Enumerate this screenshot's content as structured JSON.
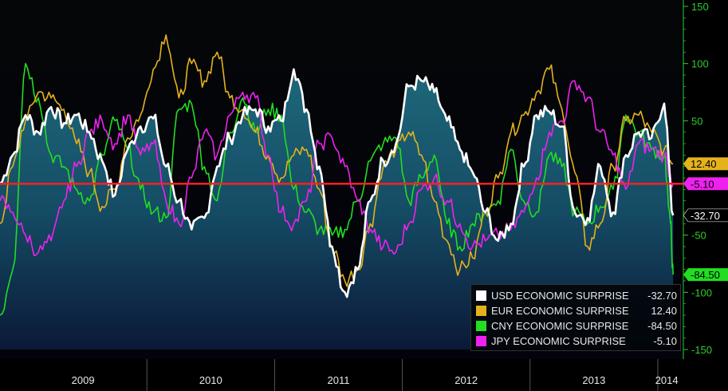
{
  "chart_data": {
    "type": "line",
    "title": "",
    "xlabel": "",
    "ylabel": "",
    "ylim": [
      -150,
      150
    ],
    "xlim": [
      2008.85,
      2014.2
    ],
    "y_ticks": [
      150,
      100,
      50,
      -50,
      -100,
      -150
    ],
    "x_tick_labels": [
      {
        "label": "2009",
        "at": 2009.5
      },
      {
        "label": "2010",
        "at": 2010.5
      },
      {
        "label": "2011",
        "at": 2011.5
      },
      {
        "label": "2012",
        "at": 2012.5
      },
      {
        "label": "2013",
        "at": 2013.5
      },
      {
        "label": "2014",
        "at": 2014.07
      }
    ],
    "year_dividers": [
      2010,
      2011,
      2012,
      2013,
      2014
    ],
    "reference_line": {
      "value": -5.1,
      "color": "#ff2222"
    },
    "series": [
      {
        "name": "USD ECONOMIC SURPRISE",
        "legend_value": "-32.70",
        "tag": "-32.70",
        "last": -32.7,
        "color": "#ffffff",
        "fill": true,
        "x": [
          2008.85,
          2008.95,
          2009.05,
          2009.15,
          2009.25,
          2009.35,
          2009.45,
          2009.55,
          2009.65,
          2009.75,
          2009.85,
          2009.95,
          2010.05,
          2010.15,
          2010.25,
          2010.35,
          2010.45,
          2010.55,
          2010.65,
          2010.75,
          2010.85,
          2010.95,
          2011.05,
          2011.15,
          2011.25,
          2011.35,
          2011.45,
          2011.55,
          2011.65,
          2011.75,
          2011.85,
          2011.95,
          2012.05,
          2012.15,
          2012.25,
          2012.35,
          2012.45,
          2012.55,
          2012.65,
          2012.75,
          2012.85,
          2012.95,
          2013.05,
          2013.15,
          2013.25,
          2013.35,
          2013.45,
          2013.55,
          2013.65,
          2013.75,
          2013.85,
          2013.95,
          2014.05,
          2014.12
        ],
        "values": [
          -5,
          20,
          55,
          40,
          62,
          48,
          55,
          40,
          15,
          -15,
          25,
          45,
          52,
          10,
          -20,
          -45,
          -35,
          10,
          35,
          55,
          60,
          45,
          50,
          95,
          60,
          10,
          -60,
          -100,
          -80,
          -20,
          15,
          30,
          80,
          85,
          75,
          50,
          25,
          5,
          -30,
          -55,
          -40,
          10,
          55,
          58,
          45,
          -30,
          -35,
          10,
          -30,
          20,
          40,
          35,
          65,
          -32.7
        ]
      },
      {
        "name": "EUR ECONOMIC SURPRISE",
        "legend_value": "12.40",
        "tag": "12.40",
        "last": 12.4,
        "color": "#e5b21c",
        "fill": false,
        "x": [
          2008.85,
          2008.95,
          2009.05,
          2009.15,
          2009.25,
          2009.35,
          2009.45,
          2009.55,
          2009.65,
          2009.75,
          2009.85,
          2009.95,
          2010.05,
          2010.15,
          2010.25,
          2010.35,
          2010.45,
          2010.55,
          2010.65,
          2010.75,
          2010.85,
          2010.95,
          2011.05,
          2011.15,
          2011.25,
          2011.35,
          2011.45,
          2011.55,
          2011.65,
          2011.75,
          2011.85,
          2011.95,
          2012.05,
          2012.15,
          2012.25,
          2012.35,
          2012.45,
          2012.55,
          2012.65,
          2012.75,
          2012.85,
          2012.95,
          2013.05,
          2013.15,
          2013.25,
          2013.35,
          2013.45,
          2013.55,
          2013.65,
          2013.75,
          2013.85,
          2013.95,
          2014.05,
          2014.12
        ],
        "values": [
          -40,
          10,
          50,
          75,
          70,
          60,
          30,
          5,
          -25,
          -10,
          35,
          55,
          95,
          125,
          70,
          100,
          85,
          110,
          70,
          60,
          40,
          20,
          0,
          20,
          25,
          -10,
          -60,
          -90,
          -80,
          -40,
          10,
          25,
          40,
          20,
          -20,
          -55,
          -80,
          -70,
          -30,
          0,
          40,
          55,
          75,
          95,
          60,
          5,
          -60,
          -40,
          10,
          50,
          55,
          40,
          25,
          12.4
        ]
      },
      {
        "name": "CNY ECONOMIC SURPRISE",
        "legend_value": "-84.50",
        "tag": "-84.50",
        "last": -84.5,
        "color": "#22dd22",
        "fill": false,
        "x": [
          2008.85,
          2008.95,
          2009.05,
          2009.15,
          2009.25,
          2009.35,
          2009.45,
          2009.55,
          2009.65,
          2009.75,
          2009.85,
          2009.95,
          2010.05,
          2010.15,
          2010.25,
          2010.35,
          2010.45,
          2010.55,
          2010.65,
          2010.75,
          2010.85,
          2010.95,
          2011.05,
          2011.15,
          2011.25,
          2011.35,
          2011.45,
          2011.55,
          2011.65,
          2011.75,
          2011.85,
          2011.95,
          2012.05,
          2012.15,
          2012.25,
          2012.35,
          2012.45,
          2012.55,
          2012.65,
          2012.75,
          2012.85,
          2012.95,
          2013.05,
          2013.15,
          2013.25,
          2013.35,
          2013.45,
          2013.55,
          2013.65,
          2013.75,
          2013.85,
          2013.95,
          2014.05,
          2014.1,
          2014.12
        ],
        "values": [
          -120,
          -80,
          100,
          70,
          20,
          10,
          -10,
          -20,
          20,
          50,
          25,
          -10,
          -30,
          -35,
          60,
          65,
          10,
          -20,
          40,
          70,
          40,
          60,
          55,
          -10,
          -30,
          -45,
          -50,
          -45,
          -20,
          15,
          30,
          35,
          -20,
          0,
          20,
          -40,
          -60,
          -40,
          -30,
          -20,
          25,
          -20,
          -30,
          20,
          10,
          -30,
          -40,
          -25,
          -10,
          55,
          40,
          25,
          20,
          -40,
          -84.5
        ]
      },
      {
        "name": "JPY ECONOMIC SURPRISE",
        "legend_value": "-5.10",
        "tag": "-5.10",
        "last": -5.1,
        "color": "#ee22ee",
        "fill": false,
        "x": [
          2008.85,
          2008.95,
          2009.05,
          2009.15,
          2009.25,
          2009.35,
          2009.45,
          2009.55,
          2009.65,
          2009.75,
          2009.85,
          2009.95,
          2010.05,
          2010.15,
          2010.25,
          2010.35,
          2010.45,
          2010.55,
          2010.65,
          2010.75,
          2010.85,
          2010.95,
          2011.05,
          2011.15,
          2011.25,
          2011.35,
          2011.45,
          2011.55,
          2011.65,
          2011.75,
          2011.85,
          2011.95,
          2012.05,
          2012.15,
          2012.25,
          2012.35,
          2012.45,
          2012.55,
          2012.65,
          2012.75,
          2012.85,
          2012.95,
          2013.05,
          2013.15,
          2013.25,
          2013.35,
          2013.45,
          2013.55,
          2013.65,
          2013.75,
          2013.85,
          2013.95,
          2014.05,
          2014.12
        ],
        "values": [
          -20,
          -30,
          -50,
          -65,
          -55,
          -20,
          10,
          40,
          50,
          30,
          55,
          20,
          30,
          -20,
          -40,
          0,
          40,
          20,
          55,
          75,
          70,
          20,
          -30,
          -40,
          -20,
          30,
          35,
          10,
          -20,
          -45,
          -60,
          -65,
          -40,
          -10,
          0,
          -20,
          -40,
          -60,
          -55,
          -50,
          -45,
          -30,
          0,
          40,
          50,
          85,
          70,
          40,
          20,
          -10,
          30,
          25,
          20,
          -5.1
        ]
      }
    ]
  }
}
